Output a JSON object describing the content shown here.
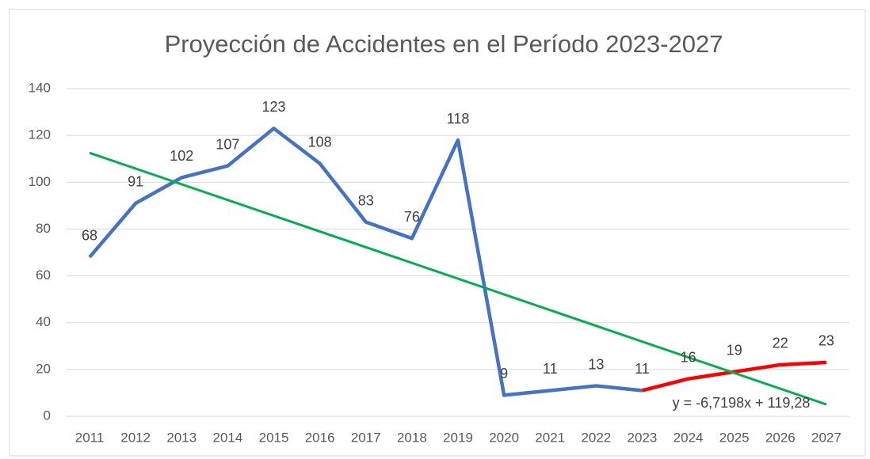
{
  "chart_data": {
    "type": "line",
    "title": "Proyección de Accidentes en el Período 2023-2027",
    "categories": [
      "2011",
      "2012",
      "2013",
      "2014",
      "2015",
      "2016",
      "2017",
      "2018",
      "2019",
      "2020",
      "2021",
      "2022",
      "2023",
      "2024",
      "2025",
      "2026",
      "2027"
    ],
    "series": [
      {
        "color": "#4472c4",
        "values": [
          68,
          91,
          102,
          107,
          123,
          108,
          83,
          76,
          118,
          9,
          11,
          13,
          11,
          null,
          null,
          null,
          null
        ]
      },
      {
        "color": "#ff0000",
        "values": [
          null,
          null,
          null,
          null,
          null,
          null,
          null,
          null,
          null,
          null,
          null,
          null,
          11,
          16,
          19,
          22,
          23
        ],
        "value_labels": [
          null,
          null,
          null,
          null,
          null,
          null,
          null,
          null,
          null,
          null,
          null,
          null,
          null,
          "16",
          "19",
          "22",
          "23"
        ]
      }
    ],
    "trendline": {
      "slope": -6.7198,
      "intercept": 119.28,
      "color": "#00b050",
      "label": "y = -6,7198x + 119,28"
    },
    "ylim": [
      0,
      140
    ],
    "yticks": [
      0,
      20,
      40,
      60,
      80,
      100,
      120,
      140
    ],
    "grid": true
  }
}
